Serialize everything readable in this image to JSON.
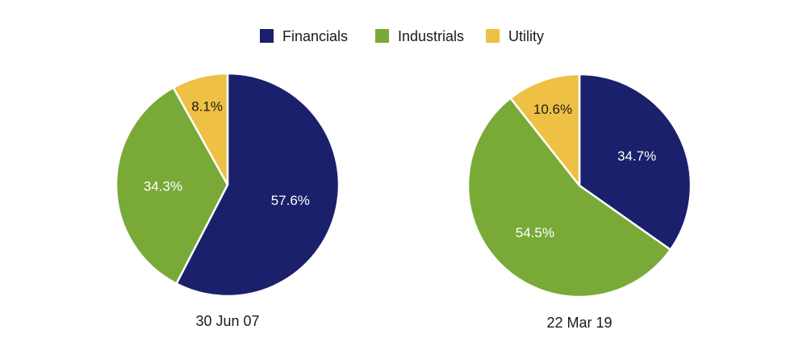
{
  "chart_data": {
    "type": "pie",
    "legend": {
      "placement": "top-center",
      "entries": [
        {
          "name": "Financials",
          "color": "#1a206b"
        },
        {
          "name": "Industrials",
          "color": "#79aa38"
        },
        {
          "name": "Utility",
          "color": "#eec044"
        }
      ]
    },
    "pies": [
      {
        "title": "30 Jun 07",
        "slices": [
          {
            "category": "Financials",
            "value": 57.6,
            "label": "57.6%"
          },
          {
            "category": "Industrials",
            "value": 34.3,
            "label": "34.3%"
          },
          {
            "category": "Utility",
            "value": 8.1,
            "label": "8.1%"
          }
        ]
      },
      {
        "title": "22 Mar 19",
        "slices": [
          {
            "category": "Financials",
            "value": 34.7,
            "label": "34.7%"
          },
          {
            "category": "Industrials",
            "value": 54.5,
            "label": "54.5%"
          },
          {
            "category": "Utility",
            "value": 10.6,
            "label": "10.6%"
          }
        ]
      }
    ],
    "label_colors": {
      "Financials": "#ffffff",
      "Industrials": "#ffffff",
      "Utility": "#1a1a1a"
    }
  }
}
